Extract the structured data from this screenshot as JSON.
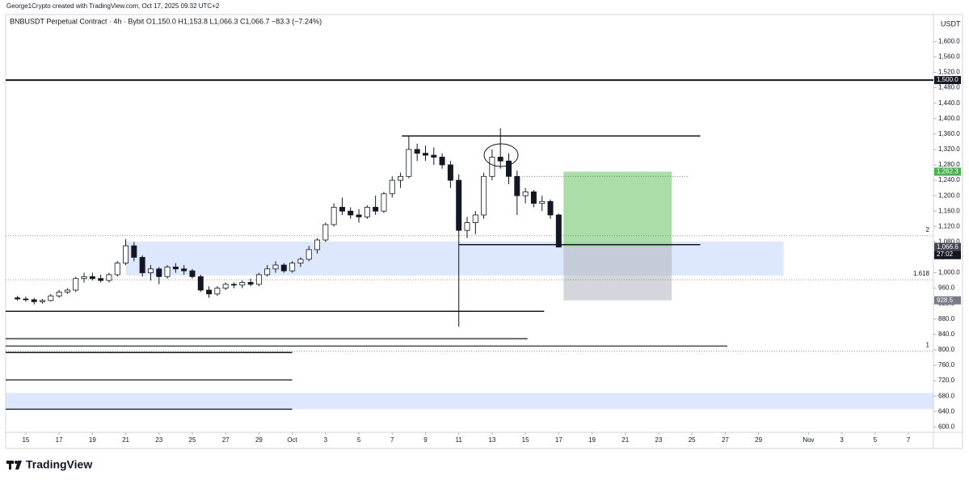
{
  "header": "George1Crypto created with TradingView.com, Oct 17, 2025 09:32 UTC+2",
  "logo": "TradingView",
  "chart_data": {
    "type": "candlestick",
    "title": "BNBUSDT Perpetual Contract · 4h · Bybit   O1,150.0  H1,153.8  L1,066.3  C1,066.7  −83.3 (−7.24%)",
    "y_unit": "USDT",
    "ylim": [
      586,
      1670
    ],
    "yticks": [
      {
        "value": 600,
        "label": "600.0"
      },
      {
        "value": 640,
        "label": "640.0"
      },
      {
        "value": 680,
        "label": "680.0"
      },
      {
        "value": 720,
        "label": "720.0"
      },
      {
        "value": 760,
        "label": "760.0"
      },
      {
        "value": 800,
        "label": "800.0"
      },
      {
        "value": 840,
        "label": "840.0"
      },
      {
        "value": 880,
        "label": "880.0"
      },
      {
        "value": 920,
        "label": "920.0"
      },
      {
        "value": 960,
        "label": "960.0"
      },
      {
        "value": 1000,
        "label": "1,000.0"
      },
      {
        "value": 1040,
        "label": "1,040.0"
      },
      {
        "value": 1080,
        "label": "1,080.0"
      },
      {
        "value": 1120,
        "label": "1,120.0"
      },
      {
        "value": 1160,
        "label": "1,160.0"
      },
      {
        "value": 1200,
        "label": "1,200.0"
      },
      {
        "value": 1240,
        "label": "1,240.0"
      },
      {
        "value": 1280,
        "label": "1,280.0"
      },
      {
        "value": 1320,
        "label": "1,320.0"
      },
      {
        "value": 1360,
        "label": "1,360.0"
      },
      {
        "value": 1400,
        "label": "1,400.0"
      },
      {
        "value": 1440,
        "label": "1,440.0"
      },
      {
        "value": 1480,
        "label": "1,480.0"
      },
      {
        "value": 1520,
        "label": "1,520.0"
      },
      {
        "value": 1560,
        "label": "1,560.0"
      },
      {
        "value": 1600,
        "label": "1,600.0"
      }
    ],
    "xlim": [
      "2025-09-13T19:00",
      "2025-11-08T12:00"
    ],
    "xticks": [
      {
        "value": "2025-09-15T00:00",
        "label": "15"
      },
      {
        "value": "2025-09-17T00:00",
        "label": "17"
      },
      {
        "value": "2025-09-19T00:00",
        "label": "19"
      },
      {
        "value": "2025-09-21T00:00",
        "label": "21"
      },
      {
        "value": "2025-09-23T00:00",
        "label": "23"
      },
      {
        "value": "2025-09-25T00:00",
        "label": "25"
      },
      {
        "value": "2025-09-27T00:00",
        "label": "27"
      },
      {
        "value": "2025-09-29T00:00",
        "label": "29"
      },
      {
        "value": "2025-10-01T00:00",
        "label": "Oct"
      },
      {
        "value": "2025-10-03T00:00",
        "label": "3"
      },
      {
        "value": "2025-10-05T00:00",
        "label": "5"
      },
      {
        "value": "2025-10-07T00:00",
        "label": "7"
      },
      {
        "value": "2025-10-09T00:00",
        "label": "9"
      },
      {
        "value": "2025-10-11T00:00",
        "label": "11"
      },
      {
        "value": "2025-10-13T00:00",
        "label": "13"
      },
      {
        "value": "2025-10-15T00:00",
        "label": "15"
      },
      {
        "value": "2025-10-17T00:00",
        "label": "17"
      },
      {
        "value": "2025-10-19T00:00",
        "label": "19"
      },
      {
        "value": "2025-10-21T00:00",
        "label": "21"
      },
      {
        "value": "2025-10-23T00:00",
        "label": "23"
      },
      {
        "value": "2025-10-25T00:00",
        "label": "25"
      },
      {
        "value": "2025-10-27T00:00",
        "label": "27"
      },
      {
        "value": "2025-10-29T00:00",
        "label": "29"
      },
      {
        "value": "2025-11-01T00:00",
        "label": "Nov"
      },
      {
        "value": "2025-11-03T00:00",
        "label": "3"
      },
      {
        "value": "2025-11-05T00:00",
        "label": "5"
      },
      {
        "value": "2025-11-07T00:00",
        "label": "7"
      }
    ],
    "up_color": "#ffffff",
    "down_color": "#131722",
    "candles": [
      [
        "2025-09-14T12:00",
        935,
        940,
        928,
        932
      ],
      [
        "2025-09-15T00:00",
        932,
        938,
        925,
        930
      ],
      [
        "2025-09-15T12:00",
        930,
        935,
        918,
        925
      ],
      [
        "2025-09-16T00:00",
        925,
        932,
        920,
        928
      ],
      [
        "2025-09-16T12:00",
        928,
        945,
        925,
        940
      ],
      [
        "2025-09-17T00:00",
        940,
        955,
        935,
        950
      ],
      [
        "2025-09-17T12:00",
        950,
        960,
        945,
        955
      ],
      [
        "2025-09-18T00:00",
        955,
        990,
        950,
        985
      ],
      [
        "2025-09-18T12:00",
        985,
        1000,
        975,
        990
      ],
      [
        "2025-09-19T00:00",
        990,
        1000,
        980,
        985
      ],
      [
        "2025-09-19T12:00",
        985,
        995,
        975,
        980
      ],
      [
        "2025-09-20T00:00",
        980,
        1000,
        975,
        995
      ],
      [
        "2025-09-20T12:00",
        995,
        1030,
        990,
        1025
      ],
      [
        "2025-09-21T00:00",
        1025,
        1087,
        1020,
        1070
      ],
      [
        "2025-09-21T12:00",
        1070,
        1080,
        1030,
        1040
      ],
      [
        "2025-09-22T00:00",
        1040,
        1045,
        990,
        1000
      ],
      [
        "2025-09-22T12:00",
        1000,
        1020,
        980,
        1010
      ],
      [
        "2025-09-23T00:00",
        1010,
        1015,
        970,
        990
      ],
      [
        "2025-09-23T12:00",
        990,
        1020,
        985,
        1015
      ],
      [
        "2025-09-24T00:00",
        1015,
        1025,
        1000,
        1010
      ],
      [
        "2025-09-24T12:00",
        1010,
        1020,
        995,
        1005
      ],
      [
        "2025-09-25T00:00",
        1005,
        1010,
        985,
        990
      ],
      [
        "2025-09-25T12:00",
        990,
        995,
        950,
        955
      ],
      [
        "2025-09-26T00:00",
        955,
        965,
        935,
        945
      ],
      [
        "2025-09-26T12:00",
        945,
        965,
        940,
        960
      ],
      [
        "2025-09-27T00:00",
        960,
        975,
        955,
        970
      ],
      [
        "2025-09-27T12:00",
        970,
        975,
        960,
        968
      ],
      [
        "2025-09-28T00:00",
        968,
        980,
        960,
        975
      ],
      [
        "2025-09-28T12:00",
        975,
        985,
        965,
        970
      ],
      [
        "2025-09-29T00:00",
        970,
        1000,
        965,
        995
      ],
      [
        "2025-09-29T12:00",
        995,
        1020,
        990,
        1010
      ],
      [
        "2025-09-30T00:00",
        1010,
        1030,
        1000,
        1020
      ],
      [
        "2025-09-30T12:00",
        1020,
        1025,
        1000,
        1005
      ],
      [
        "2025-10-01T00:00",
        1005,
        1030,
        1000,
        1025
      ],
      [
        "2025-10-01T12:00",
        1025,
        1040,
        1015,
        1035
      ],
      [
        "2025-10-02T00:00",
        1035,
        1070,
        1030,
        1060
      ],
      [
        "2025-10-02T12:00",
        1060,
        1090,
        1050,
        1085
      ],
      [
        "2025-10-03T00:00",
        1085,
        1130,
        1080,
        1125
      ],
      [
        "2025-10-03T12:00",
        1125,
        1180,
        1120,
        1170
      ],
      [
        "2025-10-04T00:00",
        1170,
        1195,
        1150,
        1160
      ],
      [
        "2025-10-04T12:00",
        1160,
        1170,
        1140,
        1150
      ],
      [
        "2025-10-05T00:00",
        1150,
        1165,
        1130,
        1145
      ],
      [
        "2025-10-05T12:00",
        1145,
        1175,
        1140,
        1170
      ],
      [
        "2025-10-06T00:00",
        1170,
        1200,
        1150,
        1160
      ],
      [
        "2025-10-06T12:00",
        1160,
        1210,
        1155,
        1205
      ],
      [
        "2025-10-07T00:00",
        1205,
        1250,
        1195,
        1240
      ],
      [
        "2025-10-07T12:00",
        1240,
        1260,
        1220,
        1250
      ],
      [
        "2025-10-08T00:00",
        1250,
        1355,
        1245,
        1320
      ],
      [
        "2025-10-08T12:00",
        1320,
        1335,
        1290,
        1310
      ],
      [
        "2025-10-09T00:00",
        1310,
        1330,
        1290,
        1305
      ],
      [
        "2025-10-09T12:00",
        1305,
        1325,
        1280,
        1300
      ],
      [
        "2025-10-10T00:00",
        1300,
        1310,
        1270,
        1280
      ],
      [
        "2025-10-10T12:00",
        1280,
        1290,
        1220,
        1240
      ],
      [
        "2025-10-11T00:00",
        1240,
        1255,
        860,
        1110
      ],
      [
        "2025-10-11T12:00",
        1110,
        1145,
        1090,
        1130
      ],
      [
        "2025-10-12T00:00",
        1130,
        1160,
        1100,
        1150
      ],
      [
        "2025-10-12T12:00",
        1150,
        1260,
        1140,
        1250
      ],
      [
        "2025-10-13T00:00",
        1250,
        1320,
        1240,
        1300
      ],
      [
        "2025-10-13T12:00",
        1300,
        1375,
        1270,
        1290
      ],
      [
        "2025-10-14T00:00",
        1290,
        1310,
        1230,
        1250
      ],
      [
        "2025-10-14T12:00",
        1250,
        1265,
        1150,
        1200
      ],
      [
        "2025-10-15T00:00",
        1200,
        1220,
        1180,
        1210
      ],
      [
        "2025-10-15T12:00",
        1210,
        1215,
        1170,
        1180
      ],
      [
        "2025-10-16T00:00",
        1180,
        1200,
        1160,
        1185
      ],
      [
        "2025-10-16T12:00",
        1185,
        1190,
        1140,
        1150
      ],
      [
        "2025-10-17T00:00",
        1150,
        1153.8,
        1066.3,
        1066.7
      ]
    ],
    "levels": [
      {
        "price": 1500,
        "from": "2025-09-13T19:00",
        "to": "2025-11-08T12:00",
        "width": 2
      },
      {
        "price": 1355,
        "from": "2025-10-07T14:00",
        "to": "2025-10-25T12:00",
        "width": 1.5
      },
      {
        "price": 1073,
        "from": "2025-10-11T00:00",
        "to": "2025-10-25T12:00",
        "width": 1.5
      },
      {
        "price": 900,
        "from": "2025-09-13T19:00",
        "to": "2025-10-16T03:00",
        "width": 1.5
      },
      {
        "price": 829,
        "from": "2025-09-13T19:00",
        "to": "2025-10-15T03:00",
        "width": 1.2
      },
      {
        "price": 810,
        "from": "2025-09-13T19:00",
        "to": "2025-10-27T03:00",
        "width": 1.2
      },
      {
        "price": 793,
        "from": "2025-09-13T19:00",
        "to": "2025-10-01T00:00",
        "width": 1.5
      },
      {
        "price": 722,
        "from": "2025-09-13T19:00",
        "to": "2025-10-01T00:00",
        "width": 1.2
      },
      {
        "price": 646,
        "from": "2025-09-13T19:00",
        "to": "2025-10-01T00:00",
        "width": 1.2
      }
    ],
    "dotted_levels": [
      {
        "price": 1250,
        "from": "2025-10-14T19:00",
        "to": "2025-10-24T19:00"
      }
    ],
    "zones": [
      {
        "top": 1081,
        "bottom": 993,
        "from": "2025-09-21T00:00",
        "to": "2025-10-30T12:00"
      },
      {
        "top": 688,
        "bottom": 646,
        "from": "2025-09-13T19:00",
        "to": "2025-11-08T12:00"
      }
    ],
    "fib_levels": [
      {
        "level": 2,
        "price": 1096
      },
      {
        "level": 1.618,
        "price": 982
      },
      {
        "level": 1,
        "price": 797
      }
    ],
    "position": {
      "entry": 1066.7,
      "target": 1262.3,
      "stop": 928.5,
      "from": "2025-10-17T07:00",
      "to": "2025-10-23T19:00"
    },
    "price_labels": [
      {
        "value": 1500,
        "label": "1,500.0",
        "color": "#131722"
      },
      {
        "value": 1262.3,
        "label": "1,262.3",
        "color": "#4caf50"
      },
      {
        "value": 1066.7,
        "label": "1,066.7",
        "color": "#131722",
        "extra": "27:02"
      },
      {
        "value": 1066.6,
        "label": "1,066.6",
        "color": "#434651"
      },
      {
        "value": 928.5,
        "label": "928.5",
        "color": "#787b86"
      }
    ]
  }
}
